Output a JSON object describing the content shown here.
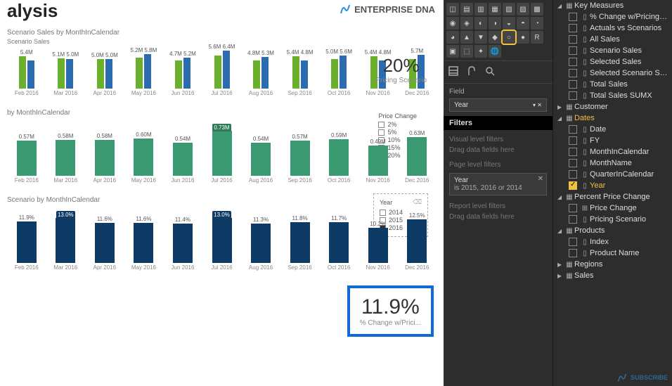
{
  "title": "alysis",
  "brand": "ENTERPRISE DNA",
  "months": [
    "Feb 2016",
    "Mar 2016",
    "Apr 2016",
    "May 2016",
    "Jun 2016",
    "Jul 2016",
    "Aug 2016",
    "Sep 2016",
    "Oct 2016",
    "Nov 2016",
    "Dec 2016"
  ],
  "chart1": {
    "subtitle": "Scenario Sales by MonthInCalendar",
    "legend": "Scenario Sales",
    "pairs": [
      {
        "a": 5.4,
        "b": 4.8,
        "la": "5.4M",
        "lb": ""
      },
      {
        "a": 5.1,
        "b": 5.0,
        "la": "5.1M",
        "lb": "5.0M"
      },
      {
        "a": 5.0,
        "b": 5.0,
        "la": "5.0M",
        "lb": "5.0M"
      },
      {
        "a": 5.2,
        "b": 5.8,
        "la": "5.2M",
        "lb": "5.8M"
      },
      {
        "a": 4.7,
        "b": 5.2,
        "la": "4.7M",
        "lb": "5.2M"
      },
      {
        "a": 5.6,
        "b": 6.4,
        "la": "5.6M",
        "lb": "6.4M"
      },
      {
        "a": 4.8,
        "b": 5.3,
        "la": "4.8M",
        "lb": "5.3M"
      },
      {
        "a": 5.4,
        "b": 4.8,
        "la": "5.4M",
        "lb": "4.8M"
      },
      {
        "a": 5.0,
        "b": 5.6,
        "la": "5.0M",
        "lb": "5.6M"
      },
      {
        "a": 5.4,
        "b": 4.8,
        "la": "5.4M",
        "lb": "4.8M"
      },
      {
        "a": 5.0,
        "b": 5.7,
        "la": "",
        "lb": "5.7M"
      }
    ],
    "max": 6.4,
    "colors": {
      "a": "#6bb02c",
      "b": "#2b6cb0"
    }
  },
  "chart2": {
    "subtitle": "by MonthInCalendar",
    "bars": [
      {
        "v": 0.57,
        "l": "0.57M"
      },
      {
        "v": 0.58,
        "l": "0.58M"
      },
      {
        "v": 0.58,
        "l": "0.58M"
      },
      {
        "v": 0.6,
        "l": "0.60M"
      },
      {
        "v": 0.54,
        "l": "0.54M"
      },
      {
        "v": 0.73,
        "l": "0.73M",
        "hl": true
      },
      {
        "v": 0.54,
        "l": "0.54M"
      },
      {
        "v": 0.57,
        "l": "0.57M"
      },
      {
        "v": 0.59,
        "l": "0.59M"
      },
      {
        "v": 0.49,
        "l": "0.49M"
      },
      {
        "v": 0.63,
        "l": "0.63M"
      }
    ],
    "max": 0.73,
    "color": "#3a9970"
  },
  "chart3": {
    "subtitle": "Scenario by MonthInCalendar",
    "bars": [
      {
        "v": 11.9,
        "l": "11.9%"
      },
      {
        "v": 13.0,
        "l": "13.0%",
        "hl": true
      },
      {
        "v": 11.6,
        "l": "11.6%"
      },
      {
        "v": 11.6,
        "l": "11.6%"
      },
      {
        "v": 11.4,
        "l": "11.4%"
      },
      {
        "v": 13.0,
        "l": "13.0%",
        "hl": true
      },
      {
        "v": 11.3,
        "l": "11.3%"
      },
      {
        "v": 11.8,
        "l": "11.8%"
      },
      {
        "v": 11.7,
        "l": "11.7%"
      },
      {
        "v": 10.2,
        "l": "10.2%"
      },
      {
        "v": 12.5,
        "l": "12.5%"
      }
    ],
    "max": 13.0,
    "color": "#0d3b66"
  },
  "card1": {
    "num": "20%",
    "lab": "Pricing Scenario"
  },
  "priceLegend": {
    "title": "Price Change",
    "items": [
      "2%",
      "5%",
      "10%",
      "15%",
      "20%"
    ],
    "selected": "20%"
  },
  "yearSlicer": {
    "title": "Year",
    "items": [
      "2014",
      "2015",
      "2016"
    ],
    "selected": "2016"
  },
  "bigCard": {
    "num": "11.9%",
    "lab": "% Change w/Prici..."
  },
  "props": {
    "fieldLabel": "Field",
    "fieldWell": "Year",
    "filtersHeader": "Filters",
    "vlf": "Visual level filters",
    "drag": "Drag data fields here",
    "plf": "Page level filters",
    "yearChip": {
      "title": "Year",
      "sub": "is 2015, 2016 or 2014"
    },
    "rlf": "Report level filters"
  },
  "fields": {
    "keyMeasures": {
      "label": "Key Measures",
      "open": true,
      "items": [
        {
          "l": "% Change w/Pricing Scenario"
        },
        {
          "l": "Actuals vs Scenarios"
        },
        {
          "l": "All Sales"
        },
        {
          "l": "Scenario Sales"
        },
        {
          "l": "Selected Sales"
        },
        {
          "l": "Selected Scenario Sales"
        },
        {
          "l": "Total Sales"
        },
        {
          "l": "Total Sales SUMX"
        }
      ]
    },
    "customer": {
      "label": "Customer",
      "open": false
    },
    "dates": {
      "label": "Dates",
      "open": true,
      "sel": true,
      "items": [
        {
          "l": "Date"
        },
        {
          "l": "FY"
        },
        {
          "l": "MonthInCalendar"
        },
        {
          "l": "MonthName"
        },
        {
          "l": "QuarterInCalendar"
        },
        {
          "l": "Year",
          "chk": true
        }
      ]
    },
    "ppc": {
      "label": "Percent Price Change",
      "open": true,
      "items": [
        {
          "l": "Price Change",
          "ico": "hier"
        },
        {
          "l": "Pricing Scenario"
        }
      ]
    },
    "products": {
      "label": "Products",
      "open": true,
      "items": [
        {
          "l": "Index"
        },
        {
          "l": "Product Name"
        }
      ]
    },
    "regions": {
      "label": "Regions",
      "open": false
    },
    "sales": {
      "label": "Sales",
      "open": false
    }
  },
  "subscribe": "SUBSCRIBE"
}
